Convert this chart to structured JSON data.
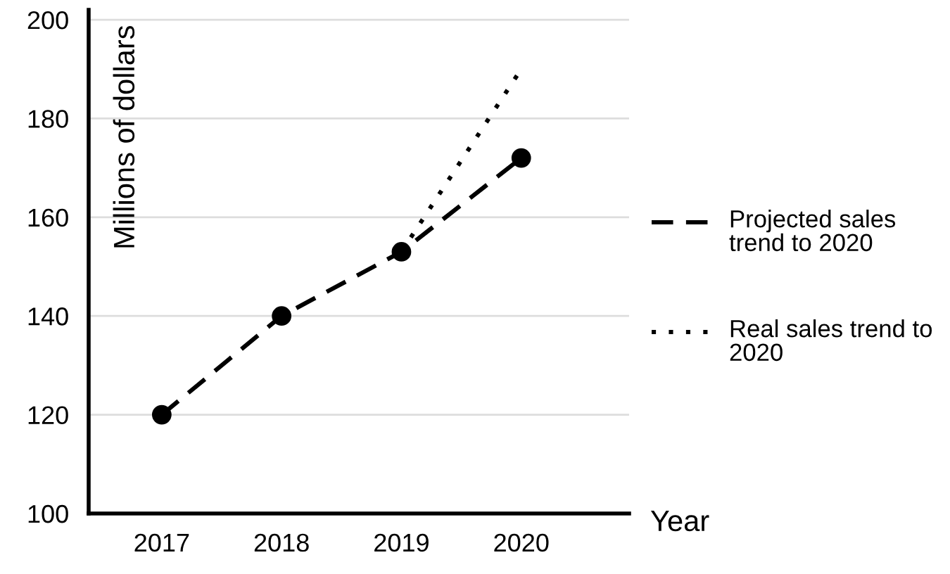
{
  "chart_data": {
    "type": "line",
    "xlabel": "Year",
    "ylabel": "Millions of dollars",
    "categories": [
      "2017",
      "2018",
      "2019",
      "2020"
    ],
    "series": [
      {
        "name": "Projected sales trend to 2020",
        "color": "#000000",
        "values": [
          120,
          140,
          153,
          172
        ],
        "line_style": "dashed",
        "marker": "circle"
      },
      {
        "name": "Real sales trend to 2020",
        "color": "#000000",
        "values": [
          null,
          null,
          153,
          190
        ],
        "line_style": "dotted",
        "marker": "none"
      }
    ],
    "ylim": [
      100,
      202
    ],
    "yticks": [
      100,
      120,
      140,
      160,
      180,
      200
    ],
    "grid": "y",
    "legend": "right"
  }
}
